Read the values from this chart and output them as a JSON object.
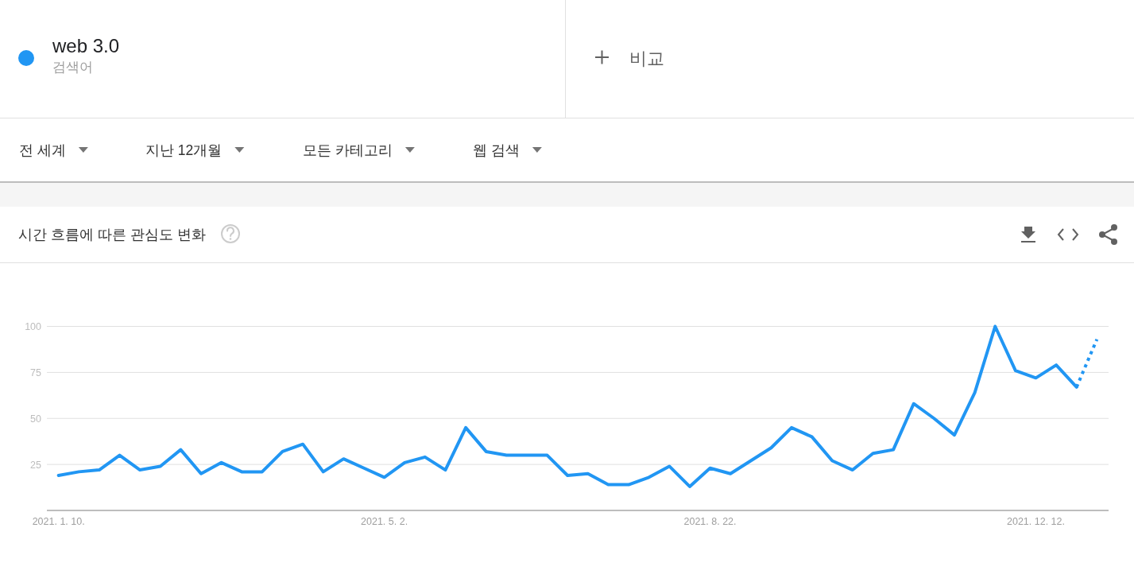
{
  "chart_data": {
    "type": "line",
    "title": "시간 흐름에 따른 관심도 변화",
    "x": [
      "2021-01-10",
      "2021-01-17",
      "2021-01-24",
      "2021-01-31",
      "2021-02-07",
      "2021-02-14",
      "2021-02-21",
      "2021-02-28",
      "2021-03-07",
      "2021-03-14",
      "2021-03-21",
      "2021-03-28",
      "2021-04-04",
      "2021-04-11",
      "2021-04-18",
      "2021-04-25",
      "2021-05-02",
      "2021-05-09",
      "2021-05-16",
      "2021-05-23",
      "2021-05-30",
      "2021-06-06",
      "2021-06-13",
      "2021-06-20",
      "2021-06-27",
      "2021-07-04",
      "2021-07-11",
      "2021-07-18",
      "2021-07-25",
      "2021-08-01",
      "2021-08-08",
      "2021-08-15",
      "2021-08-22",
      "2021-08-29",
      "2021-09-05",
      "2021-09-12",
      "2021-09-19",
      "2021-09-26",
      "2021-10-03",
      "2021-10-10",
      "2021-10-17",
      "2021-10-24",
      "2021-10-31",
      "2021-11-07",
      "2021-11-14",
      "2021-11-21",
      "2021-11-28",
      "2021-12-05",
      "2021-12-12",
      "2021-12-19",
      "2021-12-26"
    ],
    "series": [
      {
        "name": "web 3.0",
        "color": "#2196f3",
        "values": [
          19,
          21,
          22,
          30,
          22,
          24,
          33,
          20,
          26,
          21,
          21,
          32,
          36,
          21,
          28,
          23,
          18,
          26,
          29,
          22,
          45,
          32,
          30,
          30,
          30,
          19,
          20,
          14,
          14,
          18,
          24,
          13,
          23,
          20,
          27,
          34,
          45,
          40,
          27,
          22,
          31,
          33,
          58,
          50,
          41,
          64,
          100,
          76,
          72,
          79,
          67
        ]
      },
      {
        "color": "#2196f3",
        "line_style": "dotted",
        "x": [
          "2021-12-26",
          "2022-01-02"
        ],
        "values": [
          67,
          93
        ]
      }
    ],
    "xlim": [
      "2021-01-06",
      "2022-01-06"
    ],
    "xticks": [
      {
        "value": "2021-01-10",
        "label": "2021. 1. 10."
      },
      {
        "value": "2021-05-02",
        "label": "2021. 5. 2."
      },
      {
        "value": "2021-08-22",
        "label": "2021. 8. 22."
      },
      {
        "value": "2021-12-12",
        "label": "2021. 12. 12."
      }
    ],
    "ylim": [
      0,
      100
    ],
    "yticks": [
      25,
      50,
      75,
      100
    ],
    "grid": "y",
    "legend": "top left",
    "annotations": [
      "검색어",
      "비교",
      "전 세계",
      "지난 12개월",
      "모든 카테고리",
      "웹 검색"
    ]
  }
}
